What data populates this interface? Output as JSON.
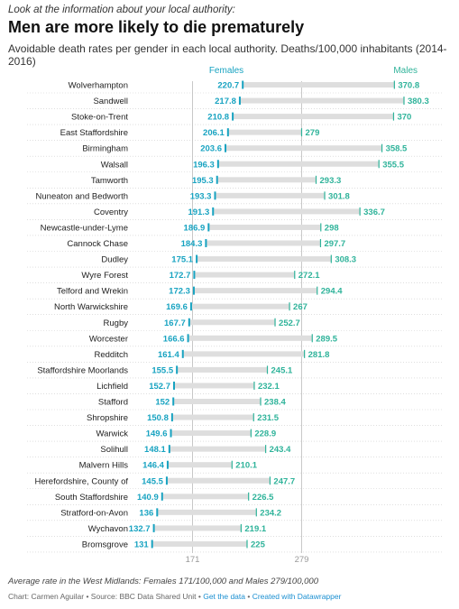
{
  "header": {
    "intro": "Look at the information about your local authority:",
    "title": "Men are more likely to die prematurely",
    "subtitle": "Avoidable death rates per gender in each local authority. Deaths/100,000 inhabitants (2014-2016)"
  },
  "footer": {
    "note": "Average rate in the West Midlands: Females 171/100,000 and Males 279/100,000",
    "chart_by": "Chart: Carmen Aguilar",
    "sep1": " • ",
    "source": "Source: BBC Data Shared Unit",
    "sep2": " • ",
    "get_data": "Get the data",
    "sep3": " • ",
    "created": "Created with Datawrapper"
  },
  "colors": {
    "females": "#18a3c1",
    "males": "#2fb39a",
    "range_bar": "#dedede",
    "grid": "#cccccc",
    "reference_line": "#bbbbbb"
  },
  "chart_data": {
    "type": "range-plot",
    "xlim": [
      100,
      420
    ],
    "reference_lines": [
      {
        "value": 171,
        "label": "171"
      },
      {
        "value": 279,
        "label": "279"
      }
    ],
    "series": [
      {
        "name": "Females",
        "key": "females"
      },
      {
        "name": "Males",
        "key": "males"
      }
    ],
    "categories": [
      "Wolverhampton",
      "Sandwell",
      "Stoke-on-Trent",
      "East Staffordshire",
      "Birmingham",
      "Walsall",
      "Tamworth",
      "Nuneaton and Bedworth",
      "Coventry",
      "Newcastle-under-Lyme",
      "Cannock Chase",
      "Dudley",
      "Wyre Forest",
      "Telford and Wrekin",
      "North Warwickshire",
      "Rugby",
      "Worcester",
      "Redditch",
      "Staffordshire Moorlands",
      "Lichfield",
      "Stafford",
      "Shropshire",
      "Warwick",
      "Solihull",
      "Malvern Hills",
      "Herefordshire, County of",
      "South Staffordshire",
      "Stratford-on-Avon",
      "Wychavon",
      "Bromsgrove"
    ],
    "females": [
      220.7,
      217.8,
      210.8,
      206.1,
      203.6,
      196.3,
      195.3,
      193.3,
      191.3,
      186.9,
      184.3,
      175.1,
      172.7,
      172.3,
      169.6,
      167.7,
      166.6,
      161.4,
      155.5,
      152.7,
      152,
      150.8,
      149.6,
      148.1,
      146.4,
      145.5,
      140.9,
      136,
      132.7,
      131
    ],
    "males": [
      370.8,
      380.3,
      370,
      279,
      358.5,
      355.5,
      293.3,
      301.8,
      336.7,
      298,
      297.7,
      308.3,
      272.1,
      294.4,
      267,
      252.7,
      289.5,
      281.8,
      245.1,
      232.1,
      238.4,
      231.5,
      228.9,
      243.4,
      210.1,
      247.7,
      226.5,
      234.2,
      219.1,
      225
    ]
  }
}
